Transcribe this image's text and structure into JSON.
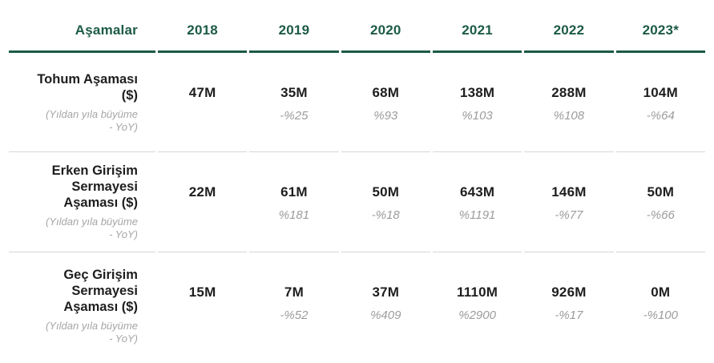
{
  "colors": {
    "accent_green": "#1C5B45",
    "value_black": "#1E1E1E",
    "muted_gray": "#9C9C9C",
    "note_gray": "#A5A5A5",
    "divider_gray": "#D6D6D6"
  },
  "table": {
    "header": {
      "stages_label": "Aşamalar",
      "years": [
        "2018",
        "2019",
        "2020",
        "2021",
        "2022",
        "2023*"
      ]
    },
    "rows": [
      {
        "title": "Tohum Aşaması\n($)",
        "note": "(Yıldan yıla büyüme\n- YoY)",
        "cells": [
          {
            "amount": "47M",
            "yoy": ""
          },
          {
            "amount": "35M",
            "yoy": "-%25"
          },
          {
            "amount": "68M",
            "yoy": "%93"
          },
          {
            "amount": "138M",
            "yoy": "%103"
          },
          {
            "amount": "288M",
            "yoy": "%108"
          },
          {
            "amount": "104M",
            "yoy": "-%64"
          }
        ]
      },
      {
        "title": "Erken Girişim\nSermayesi\nAşaması ($)",
        "note": "(Yıldan yıla büyüme\n- YoY)",
        "cells": [
          {
            "amount": "22M",
            "yoy": ""
          },
          {
            "amount": "61M",
            "yoy": "%181"
          },
          {
            "amount": "50M",
            "yoy": "-%18"
          },
          {
            "amount": "643M",
            "yoy": "%1191"
          },
          {
            "amount": "146M",
            "yoy": "-%77"
          },
          {
            "amount": "50M",
            "yoy": "-%66"
          }
        ]
      },
      {
        "title": "Geç Girişim\nSermayesi\nAşaması ($)",
        "note": "(Yıldan yıla büyüme\n- YoY)",
        "cells": [
          {
            "amount": "15M",
            "yoy": ""
          },
          {
            "amount": "7M",
            "yoy": "-%52"
          },
          {
            "amount": "37M",
            "yoy": "%409"
          },
          {
            "amount": "1110M",
            "yoy": "%2900"
          },
          {
            "amount": "926M",
            "yoy": "-%17"
          },
          {
            "amount": "0M",
            "yoy": "-%100"
          }
        ]
      }
    ]
  },
  "chart_data": {
    "type": "table",
    "title": "Aşamalar",
    "categories": [
      "2018",
      "2019",
      "2020",
      "2021",
      "2022",
      "2023*"
    ],
    "unit": "M ($)",
    "note": "(Yıldan yıla büyüme - YoY)",
    "series": [
      {
        "name": "Tohum Aşaması ($)",
        "values": [
          47,
          35,
          68,
          138,
          288,
          104
        ],
        "yoy_percent": [
          null,
          -25,
          93,
          103,
          108,
          -64
        ]
      },
      {
        "name": "Erken Girişim Sermayesi Aşaması ($)",
        "values": [
          22,
          61,
          50,
          643,
          146,
          50
        ],
        "yoy_percent": [
          null,
          181,
          -18,
          1191,
          -77,
          -66
        ]
      },
      {
        "name": "Geç Girişim Sermayesi Aşaması ($)",
        "values": [
          15,
          7,
          37,
          1110,
          926,
          0
        ],
        "yoy_percent": [
          null,
          -52,
          409,
          2900,
          -17,
          -100
        ]
      }
    ]
  }
}
